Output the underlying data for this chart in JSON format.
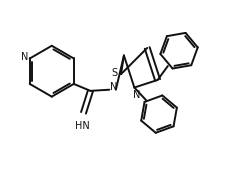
{
  "background_color": "#ffffff",
  "line_color": "#111111",
  "line_width": 1.4,
  "fig_width": 2.33,
  "fig_height": 1.69,
  "dpi": 100,
  "xlim": [
    0,
    10
  ],
  "ylim": [
    0,
    7.25
  ]
}
